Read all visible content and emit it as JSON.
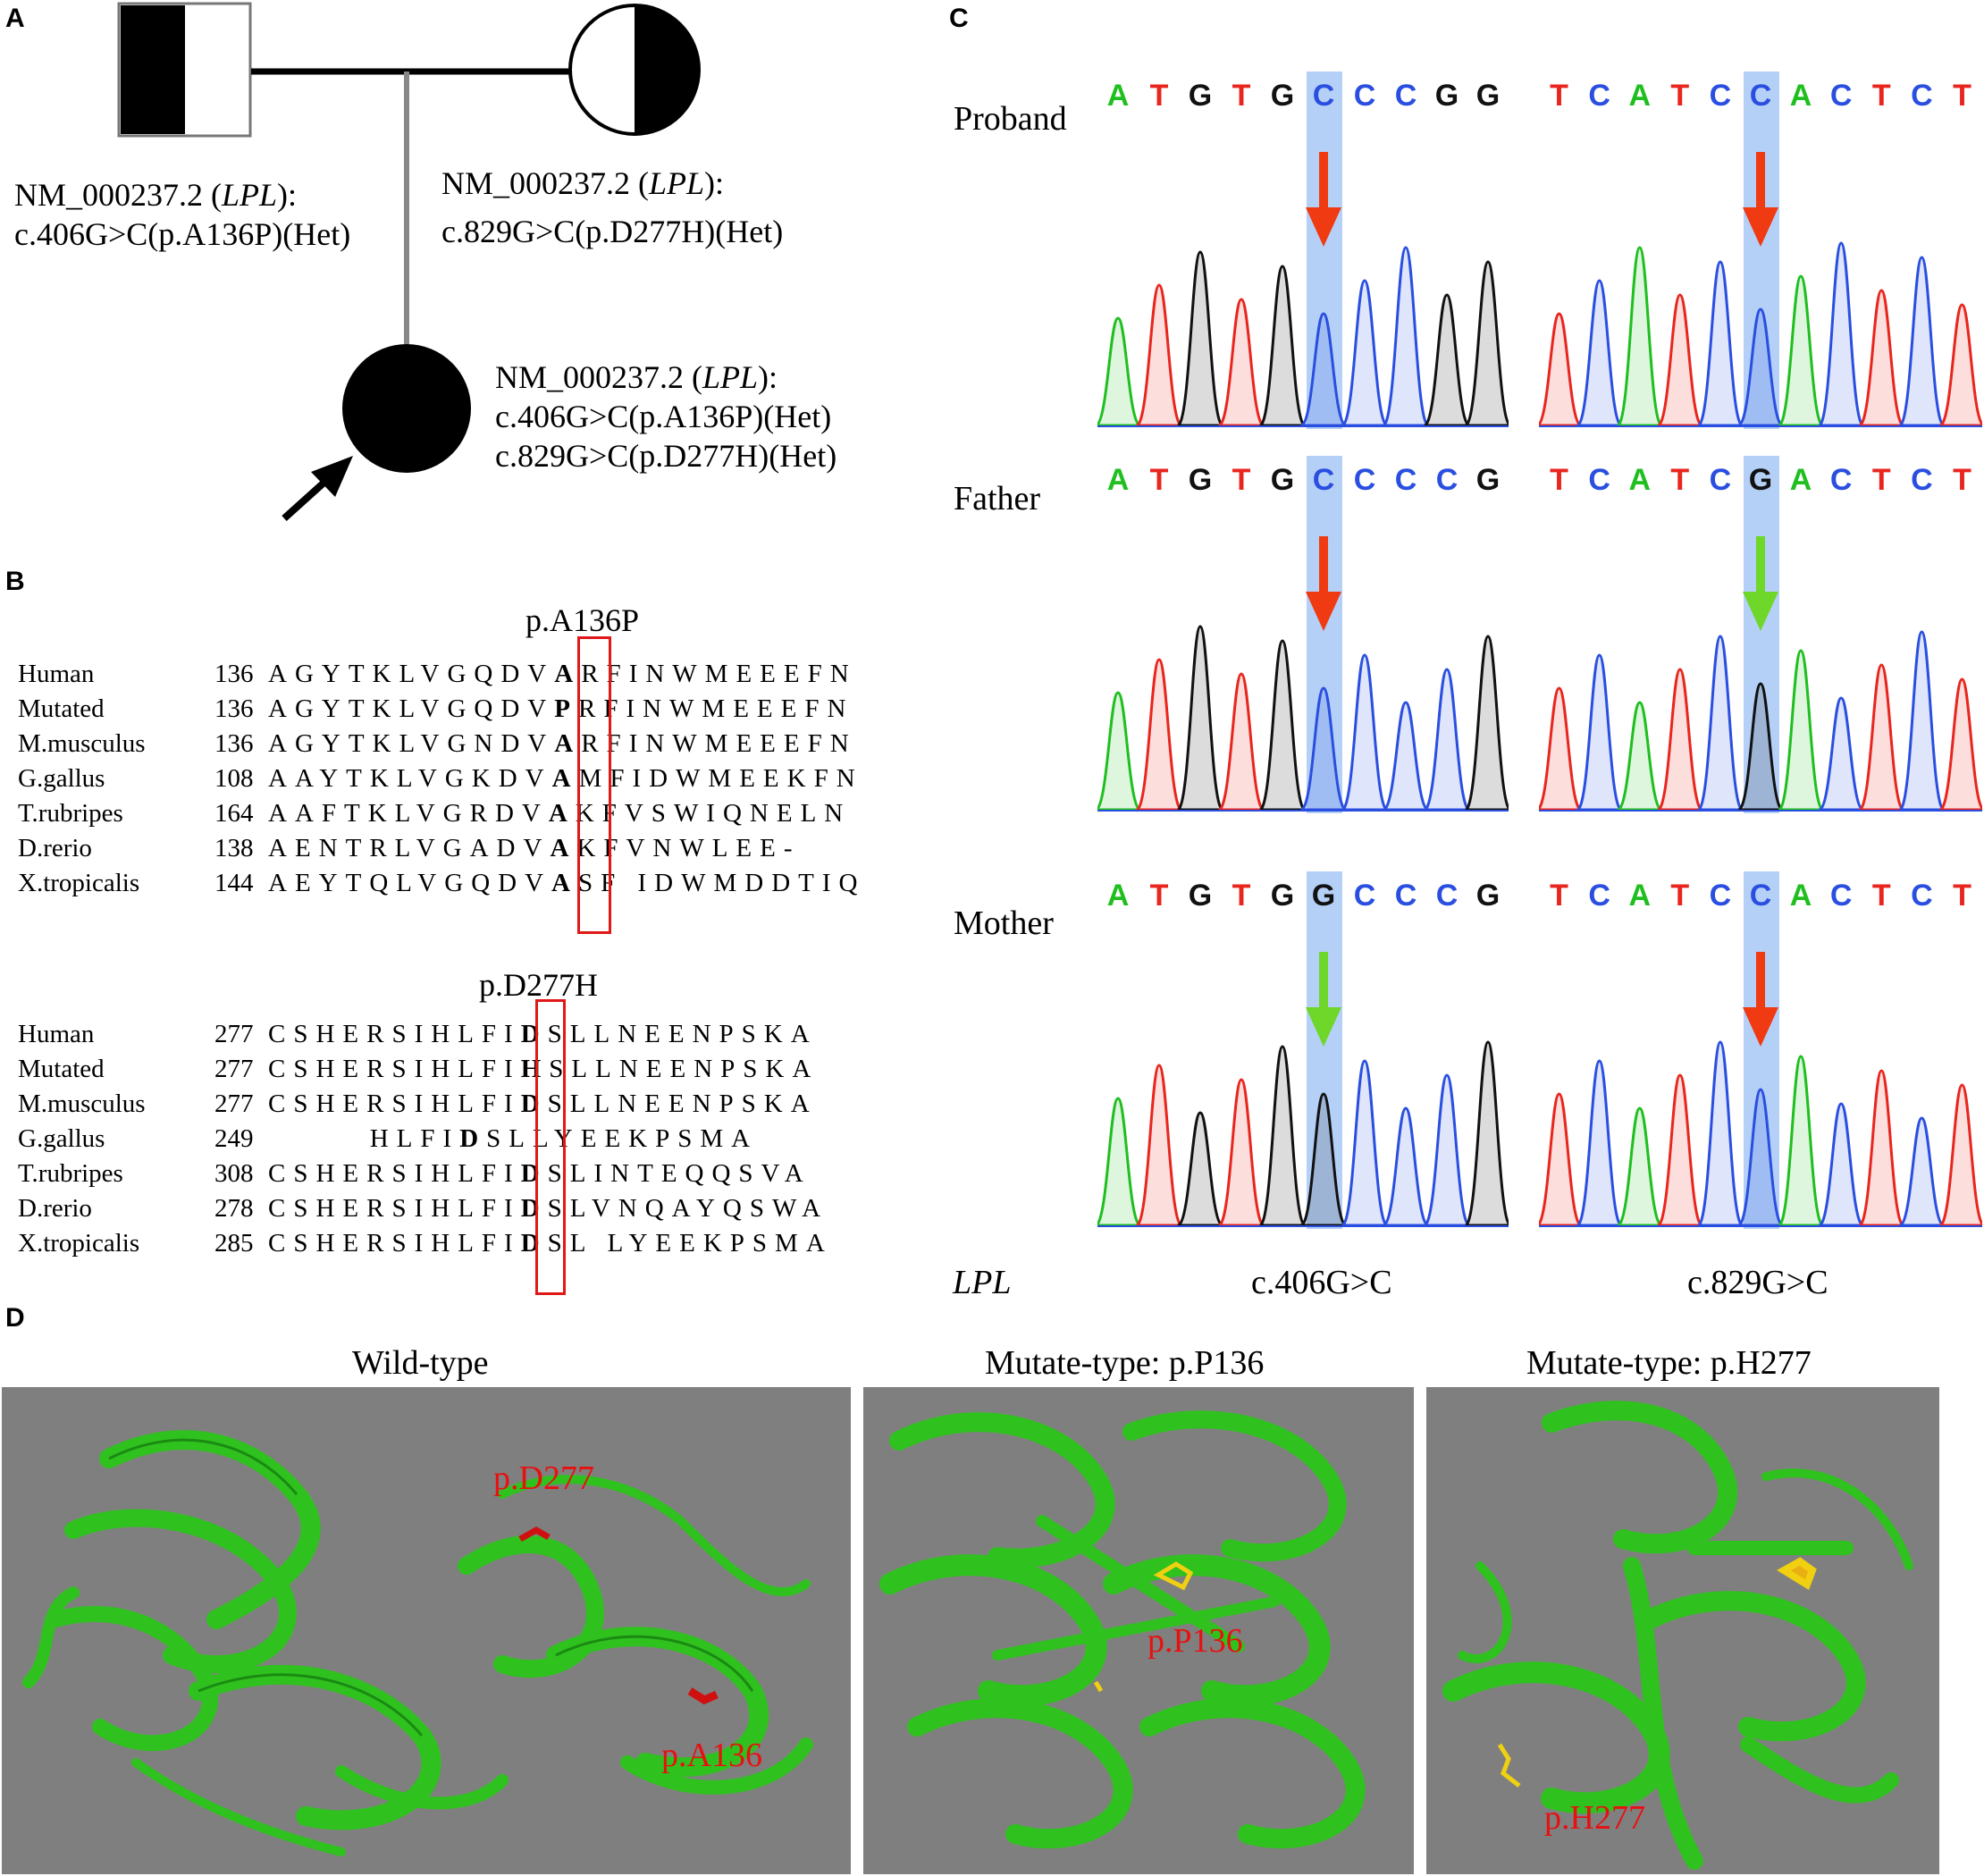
{
  "panels": {
    "a": "A",
    "b": "B",
    "c": "C",
    "d": "D"
  },
  "pedigree": {
    "father_line1": "NM_000237.2 (",
    "gene": "LPL",
    "line1_end": "):",
    "father_variant": "c.406G>C(p.A136P)(Het)",
    "mother_line1": "NM_000237.2 (",
    "mother_variant": "c.829G>C(p.D277H)(Het)",
    "proband_line1": "NM_000237.2 (",
    "proband_variant1": "c.406G>C(p.A136P)(Het)",
    "proband_variant2": "c.829G>C(p.D277H)(Het)"
  },
  "alignment": {
    "block1_title": "p.A136P",
    "block1_rows": [
      {
        "name": "Human",
        "start": "136",
        "pre": "AGYTKLVGQDV",
        "site": "A",
        "post": "RFINWMEEEFN"
      },
      {
        "name": "Mutated",
        "start": "136",
        "pre": "AGYTKLVGQDV",
        "site": "P",
        "post": "RFINWMEEEFN"
      },
      {
        "name": "M.musculus",
        "start": "136",
        "pre": "AGYTKLVGNDV",
        "site": "A",
        "post": "RFINWMEEEFN"
      },
      {
        "name": "G.gallus",
        "start": "108",
        "pre": "AAYTKLVGKDV",
        "site": "A",
        "post": "MFIDWMEEKFN"
      },
      {
        "name": "T.rubripes",
        "start": "164",
        "pre": "AAFTKLVGRDV",
        "site": "A",
        "post": "KFVSWIQNELN"
      },
      {
        "name": "D.rerio",
        "start": "138",
        "pre": "AENTRLVGADV",
        "site": "A",
        "post": "KFVNWLEE-"
      },
      {
        "name": "X.tropicalis",
        "start": "144",
        "pre": "AEYTQLVGQDV",
        "site": "A",
        "post": "SF IDWMDDTIQ"
      }
    ],
    "block2_title": "p.D277H",
    "block2_rows": [
      {
        "name": "Human",
        "start": "277",
        "pre": "CSHERSIHLFI",
        "site": "D",
        "post": "SLLNEENPSKA"
      },
      {
        "name": "Mutated",
        "start": "277",
        "pre": "CSHERSIHLFI",
        "site": "H",
        "post": "SLLNEENPSKA"
      },
      {
        "name": "M.musculus",
        "start": "277",
        "pre": "CSHERSIHLFI",
        "site": "D",
        "post": "SLLNEENPSKA"
      },
      {
        "name": "G.gallus",
        "start": "249",
        "pre": "       HLFI",
        "site": "D",
        "post": "SLLYEEKPSMA"
      },
      {
        "name": "T.rubripes",
        "start": "308",
        "pre": "CSHERSIHLFI",
        "site": "D",
        "post": "SLINTEQQSVA"
      },
      {
        "name": "D.rerio",
        "start": "278",
        "pre": "CSHERSIHLFI",
        "site": "D",
        "post": "SLVNQAYQSWA"
      },
      {
        "name": "X.tropicalis",
        "start": "285",
        "pre": "CSHERSIHLFI",
        "site": "D",
        "post": "SL LYEEKPSMA"
      }
    ]
  },
  "chromatograms": {
    "row_labels": [
      "Proband",
      "Father",
      "Mother"
    ],
    "left_seqs": [
      [
        "A",
        "T",
        "G",
        "T",
        "G",
        "C",
        "C",
        "C",
        "G",
        "G"
      ],
      [
        "A",
        "T",
        "G",
        "T",
        "G",
        "C",
        "C",
        "C",
        "C",
        "G"
      ],
      [
        "A",
        "T",
        "G",
        "T",
        "G",
        "G",
        "C",
        "C",
        "C",
        "G"
      ]
    ],
    "right_seqs": [
      [
        "T",
        "C",
        "A",
        "T",
        "C",
        "C",
        "A",
        "C",
        "T",
        "C",
        "T"
      ],
      [
        "T",
        "C",
        "A",
        "T",
        "C",
        "G",
        "A",
        "C",
        "T",
        "C",
        "T"
      ],
      [
        "T",
        "C",
        "A",
        "T",
        "C",
        "C",
        "A",
        "C",
        "T",
        "C",
        "T"
      ]
    ],
    "gene_label": "LPL",
    "left_caption": "c.406G>C",
    "right_caption": "c.829G>C",
    "colors": {
      "A": "#1fbf1f",
      "T": "#e8261e",
      "G": "#111111",
      "C": "#2a4fe0",
      "mut_arrow": "#ef3a12",
      "wt_arrow": "#6fd62a"
    }
  },
  "structures": {
    "titles": [
      "Wild-type",
      "Mutate-type: p.P136",
      "Mutate-type: p.H277"
    ],
    "wt_label1": "p.D277",
    "wt_label2": "p.A136",
    "mut1_label": "p.P136",
    "mut2_label": "p.H277"
  }
}
